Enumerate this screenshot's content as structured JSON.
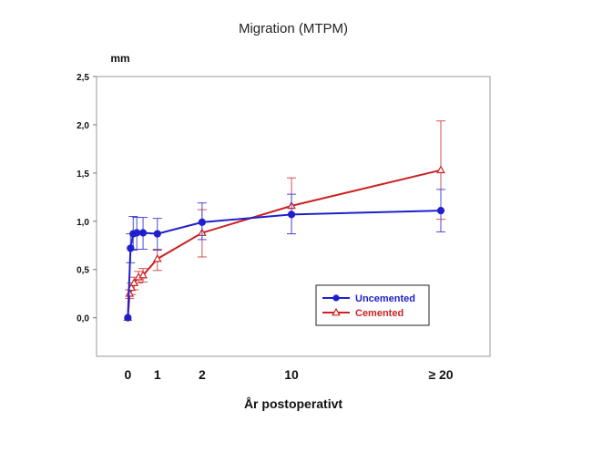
{
  "chart_data": {
    "type": "line",
    "title": "Migration (MTPM)",
    "ylabel": "mm",
    "xlabel": "År postoperativt",
    "ylim": [
      -0.4,
      2.5
    ],
    "yticks": [
      {
        "value": 2.5,
        "label": "2,5"
      },
      {
        "value": 2.0,
        "label": "2,0"
      },
      {
        "value": 1.5,
        "label": "1,5"
      },
      {
        "value": 1.0,
        "label": "1,0"
      },
      {
        "value": 0.5,
        "label": "0,5"
      },
      {
        "value": 0.0,
        "label": "0,0"
      }
    ],
    "xlim": [
      -0.35,
      4.05
    ],
    "xticks": [
      {
        "value": 0,
        "label": "0"
      },
      {
        "value": 0.33,
        "label": "1"
      },
      {
        "value": 0.83,
        "label": "2"
      },
      {
        "value": 1.83,
        "label": "10"
      },
      {
        "value": 3.5,
        "label": "≥ 20"
      }
    ],
    "legend_position": "bottom-right",
    "series": [
      {
        "name": "Uncemented",
        "color": "#1f1fcc",
        "errorbar_color": "#4a4ad6",
        "marker": "circle",
        "x": [
          0,
          0.03,
          0.06,
          0.1,
          0.17,
          0.33,
          0.83,
          1.83,
          3.5
        ],
        "y": [
          0.0,
          0.72,
          0.87,
          0.88,
          0.88,
          0.87,
          0.99,
          1.07,
          1.11
        ],
        "err_low": [
          0.0,
          0.15,
          0.17,
          0.17,
          0.17,
          0.17,
          0.18,
          0.2,
          0.22
        ],
        "err_high": [
          0.0,
          0.15,
          0.18,
          0.16,
          0.16,
          0.16,
          0.2,
          0.21,
          0.22
        ]
      },
      {
        "name": "Cemented",
        "color": "#cc2222",
        "errorbar_color": "#d65050",
        "marker": "triangle",
        "x": [
          0,
          0.02,
          0.04,
          0.07,
          0.12,
          0.17,
          0.33,
          0.83,
          1.83,
          3.5
        ],
        "y": [
          0.0,
          0.25,
          0.31,
          0.36,
          0.42,
          0.44,
          0.61,
          0.88,
          1.16,
          1.53
        ],
        "err_low": [
          0.0,
          0.05,
          0.07,
          0.07,
          0.06,
          0.07,
          0.12,
          0.25,
          0.29,
          0.51
        ],
        "err_high": [
          0.0,
          0.04,
          0.05,
          0.06,
          0.06,
          0.07,
          0.1,
          0.24,
          0.29,
          0.51
        ]
      }
    ]
  }
}
